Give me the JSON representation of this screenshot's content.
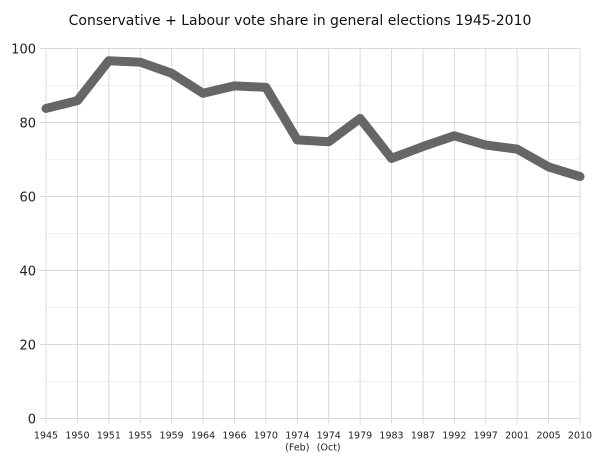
{
  "chart_data": {
    "type": "line",
    "title": "Conservative + Labour vote share in general elections 1945-2010",
    "xlabel": "",
    "ylabel": "",
    "categories": [
      "1945",
      "1950",
      "1951",
      "1955",
      "1959",
      "1964",
      "1966",
      "1970",
      "1974",
      "1974",
      "1979",
      "1983",
      "1987",
      "1992",
      "1997",
      "2001",
      "2005",
      "2010"
    ],
    "category_sublabels": [
      "",
      "",
      "",
      "",
      "",
      "",
      "",
      "",
      "(Feb)",
      "(Oct)",
      "",
      "",
      "",
      "",
      "",
      "",
      "",
      ""
    ],
    "values": [
      83.8,
      85.9,
      96.7,
      96.3,
      93.3,
      87.9,
      89.9,
      89.5,
      75.3,
      74.8,
      81.1,
      70.3,
      73.5,
      76.4,
      73.9,
      72.8,
      68.0,
      65.4
    ],
    "ylim": [
      0,
      100
    ],
    "yticks": [
      0,
      20,
      40,
      60,
      80,
      100
    ],
    "grid": true,
    "line_color": "#666666",
    "grid_color": "#d9d9d9"
  }
}
